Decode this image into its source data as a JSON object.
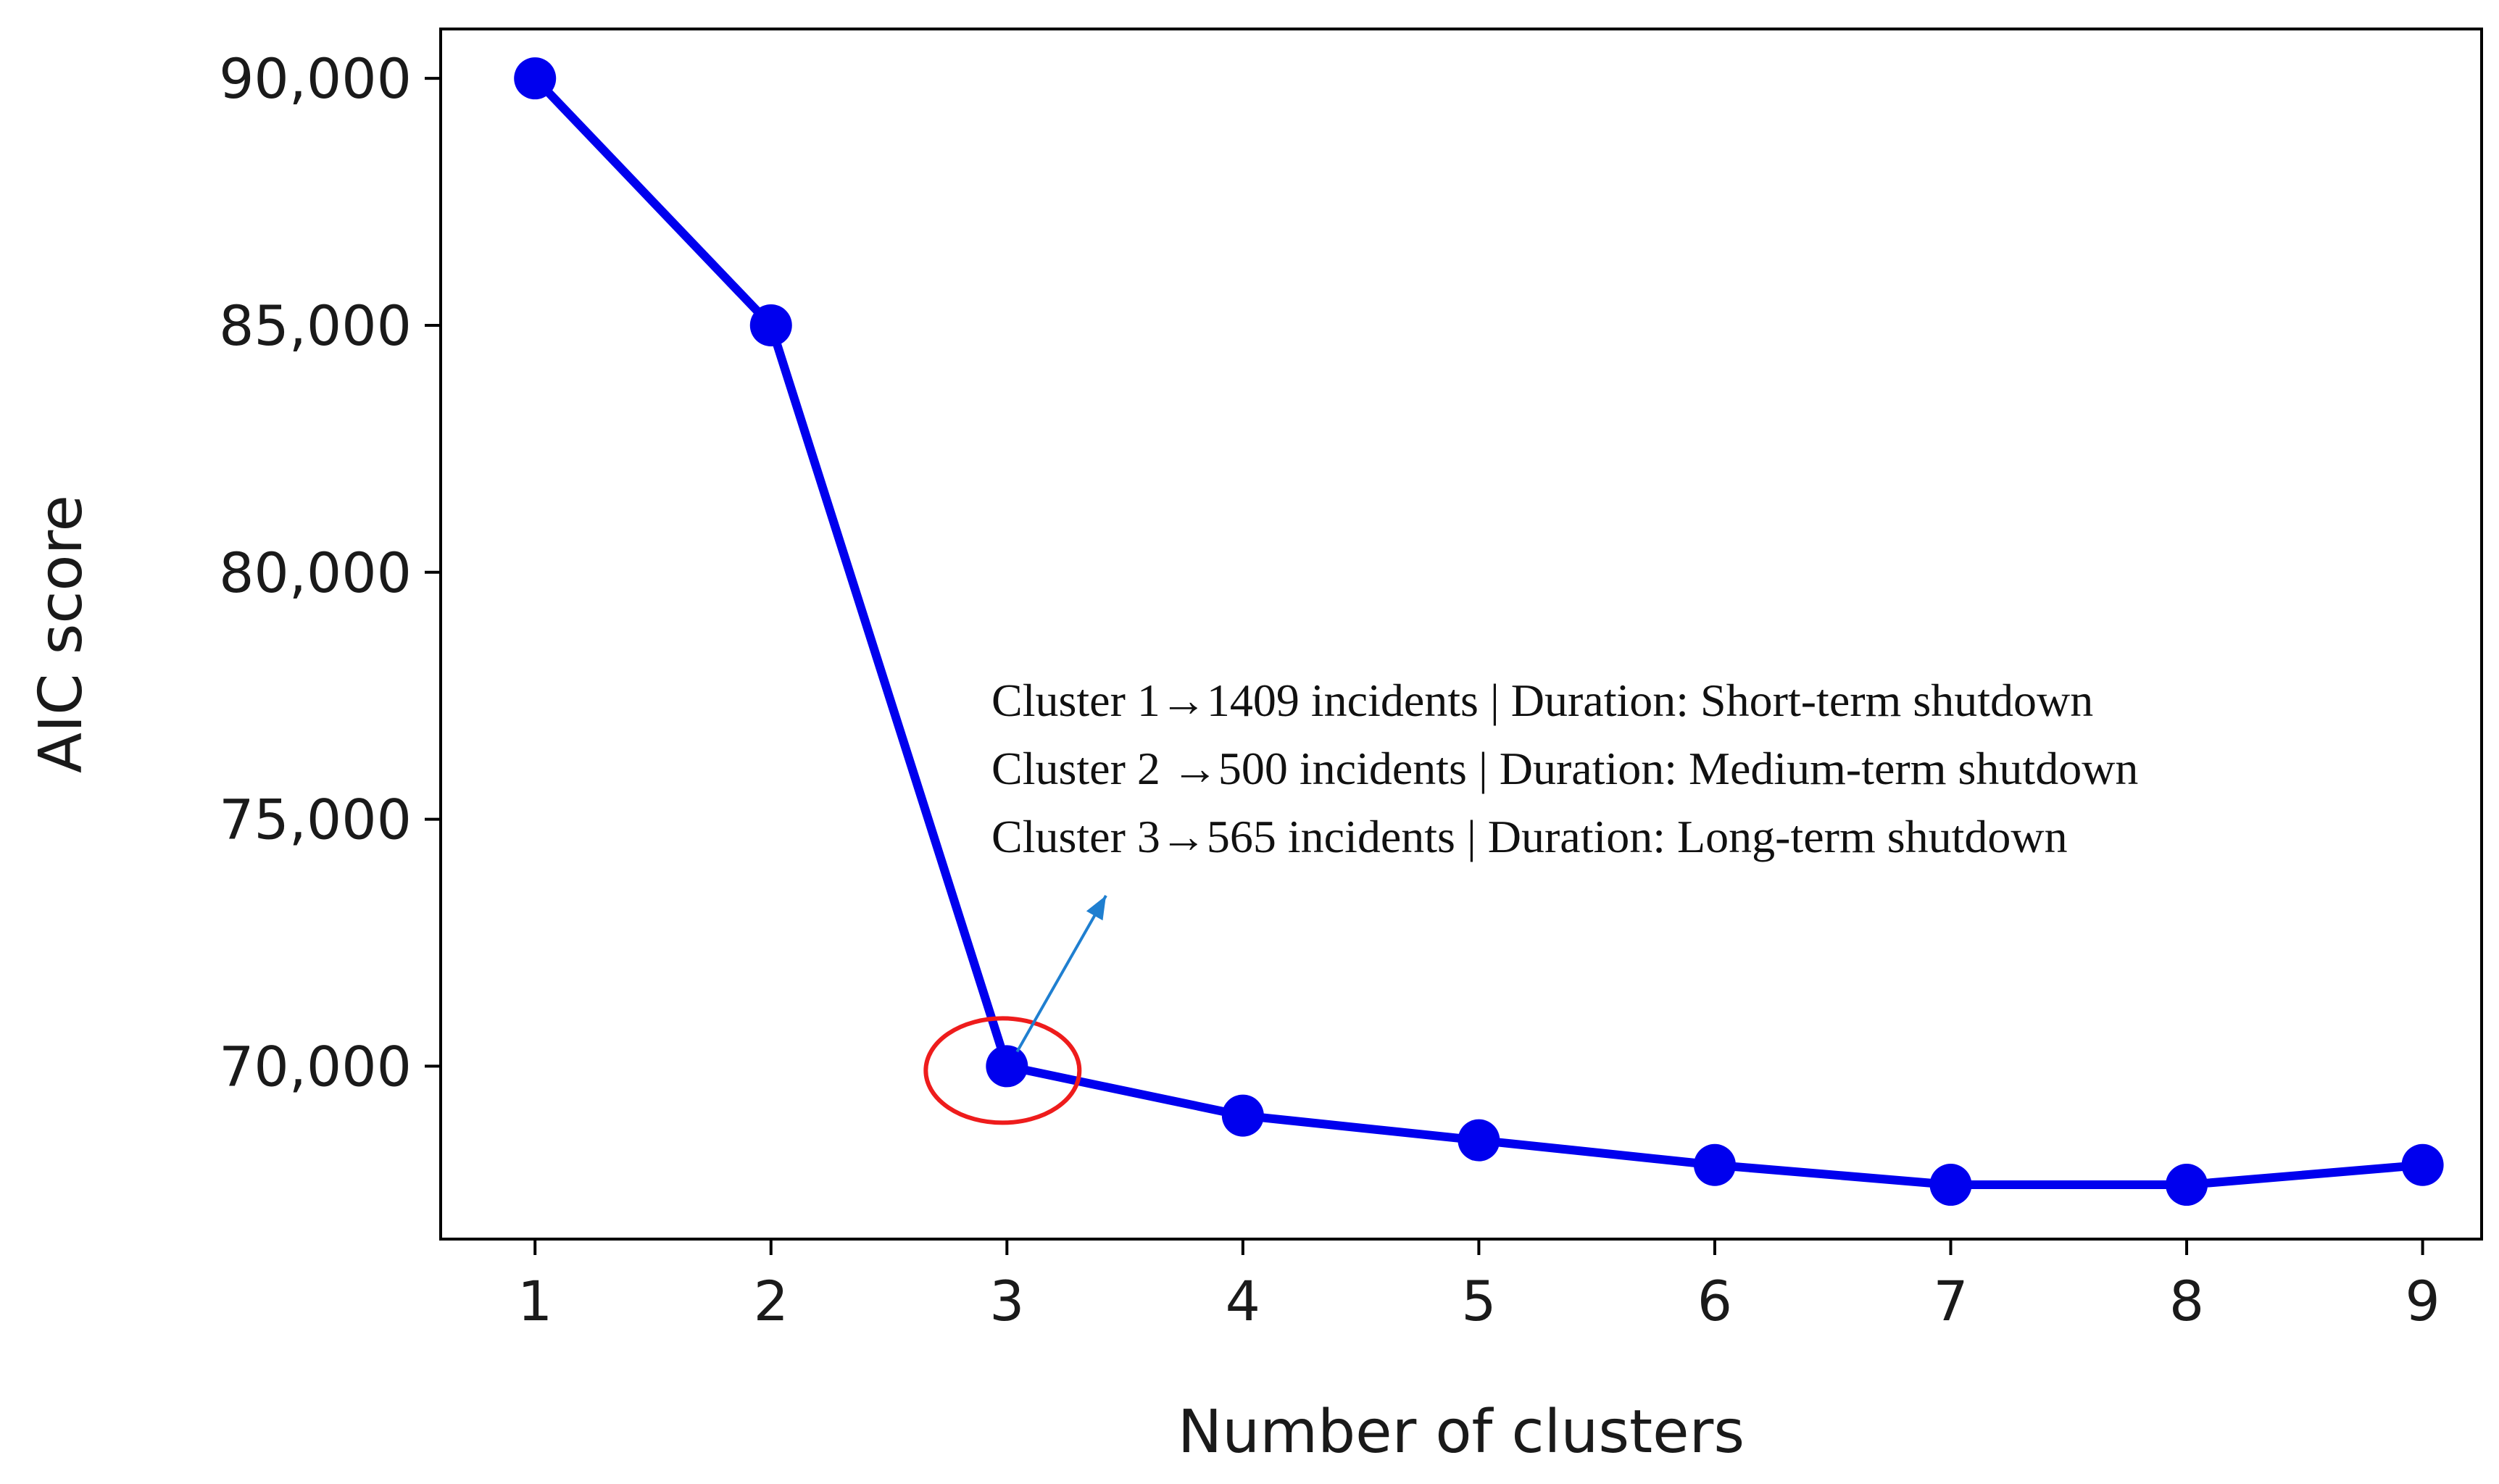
{
  "chart_data": {
    "type": "line",
    "xlabel": "Number of clusters",
    "ylabel": "AIC score",
    "x": [
      1,
      2,
      3,
      4,
      5,
      6,
      7,
      8,
      9
    ],
    "series": [
      {
        "values": [
          90000,
          85000,
          70000,
          69000,
          68500,
          68000,
          67600,
          67600,
          68000
        ],
        "color": "#0000ee"
      }
    ],
    "xlim": [
      0.6,
      9.25
    ],
    "ylim": [
      66500,
      91000
    ],
    "x_ticks": [
      1,
      2,
      3,
      4,
      5,
      6,
      7,
      8,
      9
    ],
    "x_tick_labels": [
      "1",
      "2",
      "3",
      "4",
      "5",
      "6",
      "7",
      "8",
      "9"
    ],
    "y_ticks": [
      70000,
      75000,
      80000,
      85000,
      90000
    ],
    "y_tick_labels": [
      "70,000",
      "75,000",
      "80,000",
      "85,000",
      "90,000"
    ],
    "grid": false,
    "highlight": {
      "x": 3,
      "y": 70000,
      "shape": "ellipse",
      "color": "#ee1c1c"
    },
    "arrow_color": "#1f7fd0",
    "annotations": [
      "Cluster 1→1409 incidents | Duration: Short-term shutdown",
      "Cluster 2 →500 incidents | Duration: Medium-term shutdown",
      "Cluster 3→565 incidents | Duration: Long-term shutdown"
    ]
  }
}
